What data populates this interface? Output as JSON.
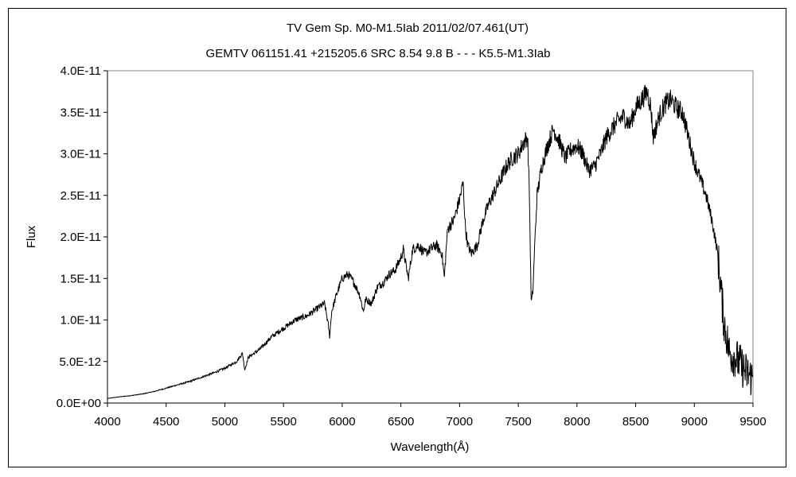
{
  "chart_data": {
    "type": "line",
    "title": "TV Gem    Sp. M0-M1.5Iab    2011/02/07.461(UT)",
    "subtitle": "GEMTV 061151.41 +215205.6 SRC 8.54 9.8 B - - - K5.5-M1.3Iab",
    "xlabel": "Wavelength(Å)",
    "ylabel": "Flux",
    "xlim": [
      4000,
      9500
    ],
    "ylim": [
      0,
      4e-11
    ],
    "grid": false,
    "legend": "none",
    "line_color": "#000000",
    "x_ticks": [
      4000,
      4500,
      5000,
      5500,
      6000,
      6500,
      7000,
      7500,
      8000,
      8500,
      9000,
      9500
    ],
    "x_tick_labels": [
      "4000",
      "4500",
      "5000",
      "5500",
      "6000",
      "6500",
      "7000",
      "7500",
      "8000",
      "8500",
      "9000",
      "9500"
    ],
    "y_ticks": [
      0,
      5e-12,
      1e-11,
      1.5e-11,
      2e-11,
      2.5e-11,
      3e-11,
      3.5e-11,
      4e-11
    ],
    "y_tick_labels": [
      "0.0E+00",
      "5.0E-12",
      "1.0E-11",
      "1.5E-11",
      "2.0E-11",
      "2.5E-11",
      "3.0E-11",
      "3.5E-11",
      "4.0E-11"
    ],
    "series": [
      {
        "x": [
          4000,
          4100,
          4200,
          4300,
          4400,
          4500,
          4600,
          4700,
          4800,
          4900,
          5000,
          5100,
          5150,
          5170,
          5200,
          5300,
          5400,
          5500,
          5600,
          5700,
          5800,
          5850,
          5880,
          5893,
          5910,
          5950,
          6000,
          6050,
          6100,
          6150,
          6180,
          6200,
          6250,
          6300,
          6350,
          6400,
          6450,
          6500,
          6520,
          6563,
          6600,
          6650,
          6700,
          6750,
          6800,
          6850,
          6870,
          6890,
          6900,
          6950,
          7000,
          7030,
          7050,
          7070,
          7100,
          7150,
          7200,
          7250,
          7300,
          7350,
          7400,
          7450,
          7500,
          7550,
          7580,
          7595,
          7610,
          7625,
          7640,
          7660,
          7700,
          7750,
          7800,
          7850,
          7900,
          7950,
          8000,
          8050,
          8100,
          8150,
          8200,
          8250,
          8300,
          8350,
          8400,
          8450,
          8500,
          8550,
          8600,
          8630,
          8650,
          8700,
          8750,
          8800,
          8850,
          8900,
          8950,
          9000,
          9050,
          9100,
          9150,
          9200,
          9250,
          9300,
          9350,
          9400,
          9450,
          9500
        ],
        "y": [
          5.5e-13,
          7.5e-13,
          9e-13,
          1.1e-12,
          1.4e-12,
          1.8e-12,
          2.2e-12,
          2.6e-12,
          3.1e-12,
          3.6e-12,
          4.2e-12,
          5e-12,
          6e-12,
          4e-12,
          5.5e-12,
          6.5e-12,
          8e-12,
          9e-12,
          1e-11,
          1.05e-11,
          1.15e-11,
          1.2e-11,
          9.5e-12,
          8e-12,
          1.1e-11,
          1.3e-11,
          1.5e-11,
          1.55e-11,
          1.45e-11,
          1.3e-11,
          1.1e-11,
          1.25e-11,
          1.2e-11,
          1.4e-11,
          1.45e-11,
          1.55e-11,
          1.6e-11,
          1.75e-11,
          1.85e-11,
          1.5e-11,
          1.85e-11,
          1.9e-11,
          1.8e-11,
          1.85e-11,
          1.9e-11,
          1.8e-11,
          1.5e-11,
          1.95e-11,
          2.1e-11,
          2.2e-11,
          2.45e-11,
          2.65e-11,
          2.1e-11,
          1.9e-11,
          1.8e-11,
          1.9e-11,
          2.2e-11,
          2.4e-11,
          2.55e-11,
          2.7e-11,
          2.85e-11,
          2.95e-11,
          3e-11,
          3.15e-11,
          3.2e-11,
          2.5e-11,
          1.2e-11,
          1.35e-11,
          1.9e-11,
          2.5e-11,
          2.85e-11,
          3.1e-11,
          3.3e-11,
          3.15e-11,
          2.95e-11,
          3.05e-11,
          3.1e-11,
          3e-11,
          2.8e-11,
          2.85e-11,
          3e-11,
          3.2e-11,
          3.3e-11,
          3.4e-11,
          3.45e-11,
          3.35e-11,
          3.55e-11,
          3.65e-11,
          3.75e-11,
          3.55e-11,
          3.2e-11,
          3.45e-11,
          3.6e-11,
          3.65e-11,
          3.55e-11,
          3.5e-11,
          3.2e-11,
          2.9e-11,
          2.7e-11,
          2.5e-11,
          2.2e-11,
          1.8e-11,
          1e-11,
          6e-12,
          5.5e-12,
          4.5e-12,
          3.5e-12,
          3e-12
        ]
      }
    ]
  }
}
